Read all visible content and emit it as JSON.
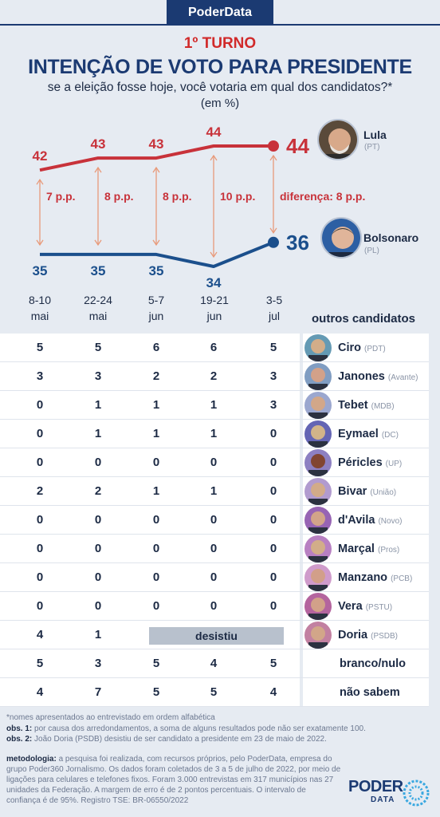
{
  "brand": "PoderData",
  "turno": "1º TURNO",
  "headline": "INTENÇÃO DE VOTO PARA PRESIDENTE",
  "subtitle": "se a eleição fosse hoje, você votaria em qual dos candidatos?*",
  "unit": "(em %)",
  "colors": {
    "lula": "#c8323a",
    "bolsonaro": "#1b4f8c",
    "navy": "#1b3a72",
    "arrow": "#e89a7a"
  },
  "chart_data": {
    "type": "line",
    "x": [
      "8-10 mai",
      "22-24 mai",
      "5-7 jun",
      "19-21 jun",
      "3-5 jul"
    ],
    "x_lines": [
      [
        "8-10",
        "mai"
      ],
      [
        "22-24",
        "mai"
      ],
      [
        "5-7",
        "jun"
      ],
      [
        "19-21",
        "jun"
      ],
      [
        "3-5",
        "jul"
      ]
    ],
    "series": [
      {
        "name": "Lula",
        "party": "(PT)",
        "values": [
          42,
          43,
          43,
          44,
          44
        ],
        "color": "#c8323a"
      },
      {
        "name": "Bolsonaro",
        "party": "(PL)",
        "values": [
          35,
          35,
          35,
          34,
          36
        ],
        "color": "#1b4f8c"
      }
    ],
    "gaps": [
      "7 p.p.",
      "8 p.p.",
      "8 p.p.",
      "10 p.p.",
      "diferença: 8 p.p."
    ]
  },
  "others_header": "outros candidatos",
  "rows": [
    {
      "name": "Ciro",
      "party": "(PDT)",
      "values": [
        "5",
        "5",
        "6",
        "6",
        "5"
      ]
    },
    {
      "name": "Janones",
      "party": "(Avante)",
      "values": [
        "3",
        "3",
        "2",
        "2",
        "3"
      ]
    },
    {
      "name": "Tebet",
      "party": "(MDB)",
      "values": [
        "0",
        "1",
        "1",
        "1",
        "3"
      ]
    },
    {
      "name": "Eymael",
      "party": "(DC)",
      "values": [
        "0",
        "1",
        "1",
        "1",
        "0"
      ]
    },
    {
      "name": "Péricles",
      "party": "(UP)",
      "values": [
        "0",
        "0",
        "0",
        "0",
        "0"
      ]
    },
    {
      "name": "Bivar",
      "party": "(União)",
      "values": [
        "2",
        "2",
        "1",
        "1",
        "0"
      ]
    },
    {
      "name": "d'Avila",
      "party": "(Novo)",
      "values": [
        "0",
        "0",
        "0",
        "0",
        "0"
      ]
    },
    {
      "name": "Marçal",
      "party": "(Pros)",
      "values": [
        "0",
        "0",
        "0",
        "0",
        "0"
      ]
    },
    {
      "name": "Manzano",
      "party": "(PCB)",
      "values": [
        "0",
        "0",
        "0",
        "0",
        "0"
      ]
    },
    {
      "name": "Vera",
      "party": "(PSTU)",
      "values": [
        "0",
        "0",
        "0",
        "0",
        "0"
      ]
    },
    {
      "name": "Doria",
      "party": "(PSDB)",
      "values": [
        "4",
        "1"
      ],
      "note": "desistiu"
    },
    {
      "name": "branco/nulo",
      "party": "",
      "values": [
        "5",
        "3",
        "5",
        "4",
        "5"
      ]
    },
    {
      "name": "não sabem",
      "party": "",
      "values": [
        "4",
        "7",
        "5",
        "5",
        "4"
      ]
    }
  ],
  "notes": {
    "alpha": "*nomes apresentados ao entrevistado em ordem alfabética",
    "obs1_label": "obs. 1:",
    "obs1": "por causa dos arredondamentos, a soma de alguns resultados pode não ser exatamente 100.",
    "obs2_label": "obs. 2:",
    "obs2": "João Doria (PSDB) desistiu de ser candidato a presidente em 23 de maio de 2022.",
    "method_label": "metodologia:",
    "method": "a pesquisa foi realizada, com recursos próprios, pelo PoderData, empresa do grupo Poder360 Jornalismo. Os dados foram coletados de 3 a 5 de julho de 2022, por meio de ligações para celulares e telefones fixos. Foram 3.000 entrevistas em 317 municípios nas 27 unidades da Federação. A margem de erro é de 2 pontos percentuais. O intervalo de confiança é de 95%. Registro TSE: BR-06550/2022"
  },
  "logo": {
    "top": "PODER",
    "bottom": "DATA"
  }
}
